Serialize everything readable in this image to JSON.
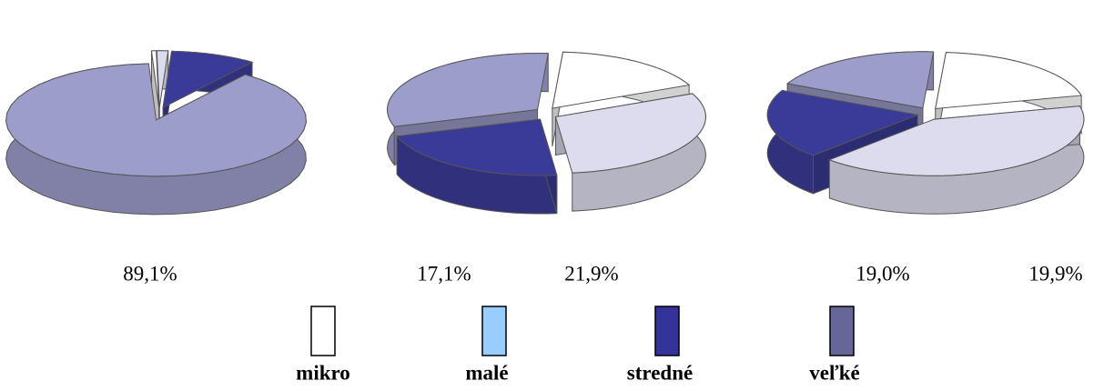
{
  "chart_data": {
    "type": "pie",
    "categories": [
      "mikro",
      "malé",
      "stredné",
      "veľké"
    ],
    "colors": [
      "#ffffff",
      "#dcdcee",
      "#3a3a99",
      "#9d9dcc"
    ],
    "legend_colors": [
      "#ffffff",
      "#99ccff",
      "#333399",
      "#666699"
    ],
    "series": [
      {
        "values": [
          0.5,
          1.2,
          9.2,
          89.1
        ],
        "value_labels": [
          null,
          null,
          null,
          "89,1%"
        ]
      },
      {
        "values": [
          17.1,
          30.0,
          21.9,
          31.0
        ],
        "value_labels": [
          "17,1%",
          null,
          "21,9%",
          null
        ]
      },
      {
        "values": [
          20.1,
          41.0,
          19.9,
          19.0
        ],
        "value_labels": [
          null,
          null,
          "19,9%",
          "19,0%"
        ]
      }
    ]
  }
}
